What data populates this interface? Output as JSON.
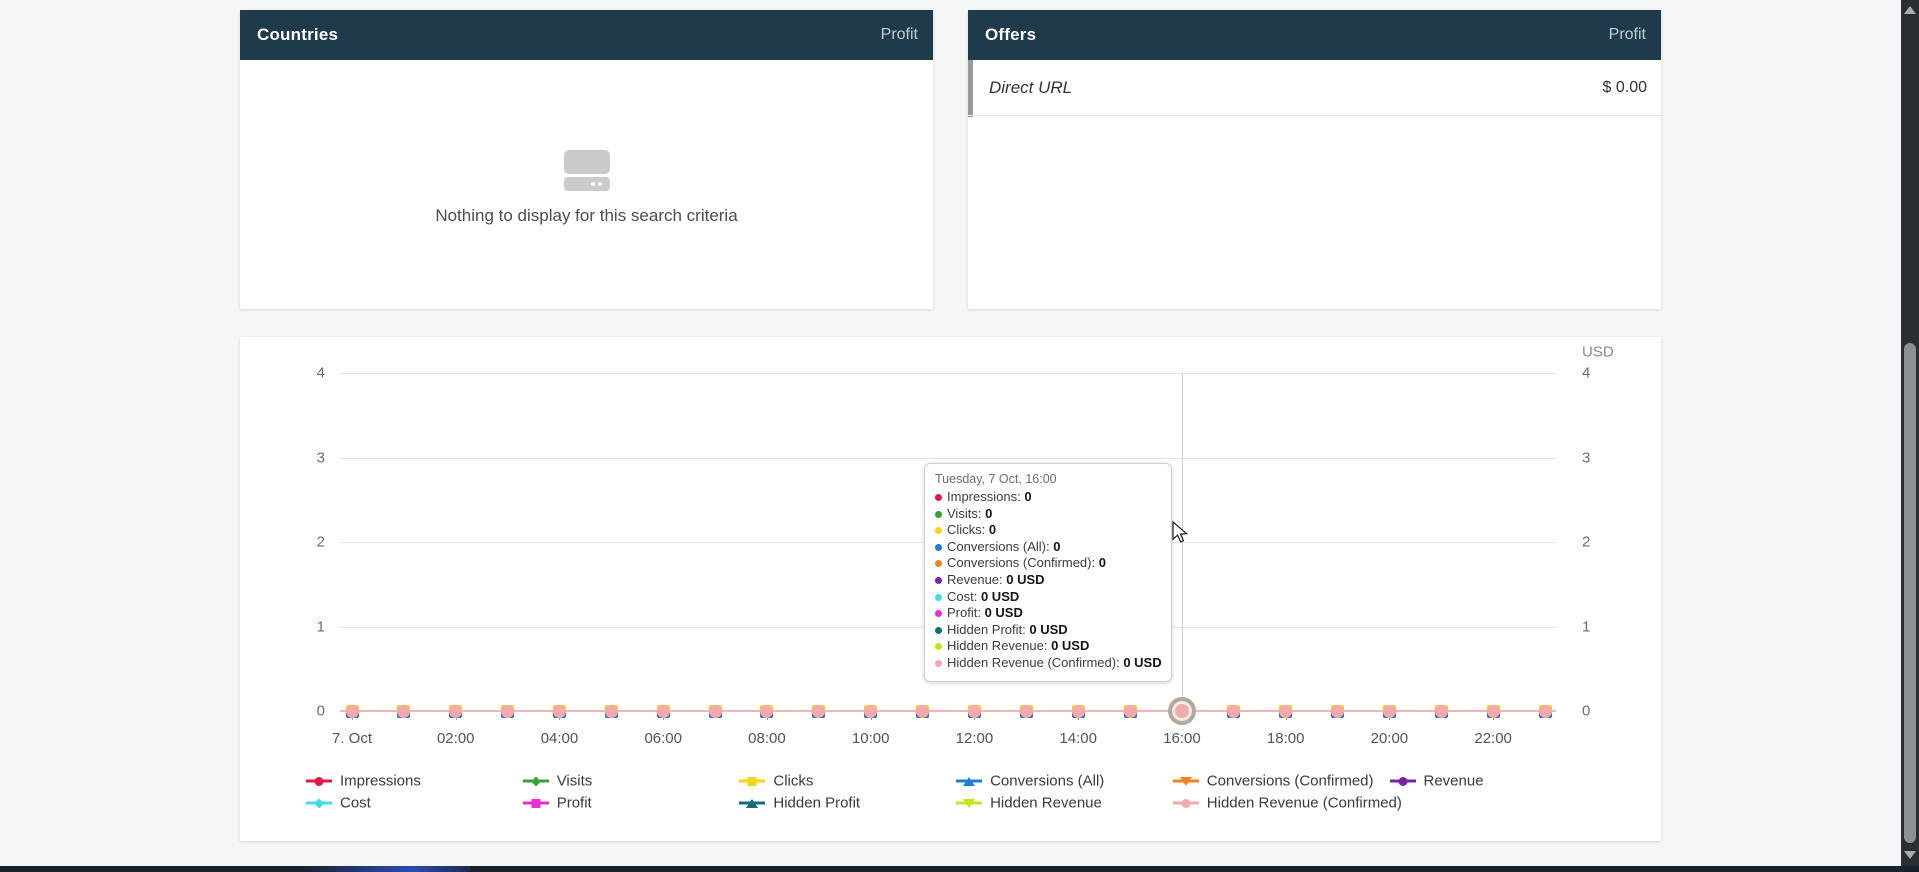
{
  "panels": {
    "countries": {
      "title": "Countries",
      "metric_label": "Profit",
      "empty_text": "Nothing to display for this search criteria"
    },
    "offers": {
      "title": "Offers",
      "metric_label": "Profit",
      "rows": [
        {
          "name": "Direct URL",
          "value": "$ 0.00"
        }
      ]
    }
  },
  "chart": {
    "unit_label": "USD",
    "y_ticks": [
      "4",
      "3",
      "2",
      "1",
      "0"
    ],
    "x_ticks": [
      "7. Oct",
      "02:00",
      "04:00",
      "06:00",
      "08:00",
      "10:00",
      "12:00",
      "14:00",
      "16:00",
      "18:00",
      "20:00",
      "22:00"
    ],
    "hover": {
      "index": 16,
      "tooltip_title": "Tuesday, 7 Oct, 16:00",
      "items": [
        {
          "label": "Impressions",
          "value": "0",
          "color": "#e0194b"
        },
        {
          "label": "Visits",
          "value": "0",
          "color": "#35a532"
        },
        {
          "label": "Clicks",
          "value": "0",
          "color": "#f6d41c"
        },
        {
          "label": "Conversions (All)",
          "value": "0",
          "color": "#1e7fd0"
        },
        {
          "label": "Conversions (Confirmed)",
          "value": "0",
          "color": "#f5821f"
        },
        {
          "label": "Revenue",
          "value": "0 USD",
          "color": "#7c21a8"
        },
        {
          "label": "Cost",
          "value": "0 USD",
          "color": "#41dde4"
        },
        {
          "label": "Profit",
          "value": "0 USD",
          "color": "#ee2bd8"
        },
        {
          "label": "Hidden Profit",
          "value": "0 USD",
          "color": "#136f77"
        },
        {
          "label": "Hidden Revenue",
          "value": "0 USD",
          "color": "#c3e51e"
        },
        {
          "label": "Hidden Revenue (Confirmed)",
          "value": "0 USD",
          "color": "#f3a9ad"
        }
      ]
    },
    "legend_rows": [
      [
        {
          "label": "Impressions",
          "color": "#e0194b",
          "shape": "circle"
        },
        {
          "label": "Visits",
          "color": "#35a532",
          "shape": "diamond"
        },
        {
          "label": "Clicks",
          "color": "#f6d41c",
          "shape": "square"
        },
        {
          "label": "Conversions (All)",
          "color": "#1e7fd0",
          "shape": "triangle-up"
        },
        {
          "label": "Conversions (Confirmed)",
          "color": "#f5821f",
          "shape": "triangle-down"
        },
        {
          "label": "Revenue",
          "color": "#7c21a8",
          "shape": "circle"
        }
      ],
      [
        {
          "label": "Cost",
          "color": "#41dde4",
          "shape": "diamond"
        },
        {
          "label": "Profit",
          "color": "#ee2bd8",
          "shape": "square"
        },
        {
          "label": "Hidden Profit",
          "color": "#136f77",
          "shape": "triangle-up"
        },
        {
          "label": "Hidden Revenue",
          "color": "#c3e51e",
          "shape": "triangle-down"
        },
        {
          "label": "Hidden Revenue (Confirmed)",
          "color": "#f3a9ad",
          "shape": "circle"
        }
      ]
    ]
  },
  "chart_data": {
    "type": "line",
    "title": "",
    "xlabel": "",
    "ylabel": "USD",
    "ylim": [
      0,
      4
    ],
    "grid": true,
    "legend_position": "bottom",
    "x": [
      "00:00",
      "01:00",
      "02:00",
      "03:00",
      "04:00",
      "05:00",
      "06:00",
      "07:00",
      "08:00",
      "09:00",
      "10:00",
      "11:00",
      "12:00",
      "13:00",
      "14:00",
      "15:00",
      "16:00",
      "17:00",
      "18:00",
      "19:00",
      "20:00",
      "21:00",
      "22:00",
      "23:00"
    ],
    "series": [
      {
        "name": "Impressions",
        "color": "#e0194b",
        "values": [
          0,
          0,
          0,
          0,
          0,
          0,
          0,
          0,
          0,
          0,
          0,
          0,
          0,
          0,
          0,
          0,
          0,
          0,
          0,
          0,
          0,
          0,
          0,
          0
        ]
      },
      {
        "name": "Visits",
        "color": "#35a532",
        "values": [
          0,
          0,
          0,
          0,
          0,
          0,
          0,
          0,
          0,
          0,
          0,
          0,
          0,
          0,
          0,
          0,
          0,
          0,
          0,
          0,
          0,
          0,
          0,
          0
        ]
      },
      {
        "name": "Clicks",
        "color": "#f6d41c",
        "values": [
          0,
          0,
          0,
          0,
          0,
          0,
          0,
          0,
          0,
          0,
          0,
          0,
          0,
          0,
          0,
          0,
          0,
          0,
          0,
          0,
          0,
          0,
          0,
          0
        ]
      },
      {
        "name": "Conversions (All)",
        "color": "#1e7fd0",
        "values": [
          0,
          0,
          0,
          0,
          0,
          0,
          0,
          0,
          0,
          0,
          0,
          0,
          0,
          0,
          0,
          0,
          0,
          0,
          0,
          0,
          0,
          0,
          0,
          0
        ]
      },
      {
        "name": "Conversions (Confirmed)",
        "color": "#f5821f",
        "values": [
          0,
          0,
          0,
          0,
          0,
          0,
          0,
          0,
          0,
          0,
          0,
          0,
          0,
          0,
          0,
          0,
          0,
          0,
          0,
          0,
          0,
          0,
          0,
          0
        ]
      },
      {
        "name": "Revenue",
        "color": "#7c21a8",
        "values": [
          0,
          0,
          0,
          0,
          0,
          0,
          0,
          0,
          0,
          0,
          0,
          0,
          0,
          0,
          0,
          0,
          0,
          0,
          0,
          0,
          0,
          0,
          0,
          0
        ]
      },
      {
        "name": "Cost",
        "color": "#41dde4",
        "values": [
          0,
          0,
          0,
          0,
          0,
          0,
          0,
          0,
          0,
          0,
          0,
          0,
          0,
          0,
          0,
          0,
          0,
          0,
          0,
          0,
          0,
          0,
          0,
          0
        ]
      },
      {
        "name": "Profit",
        "color": "#ee2bd8",
        "values": [
          0,
          0,
          0,
          0,
          0,
          0,
          0,
          0,
          0,
          0,
          0,
          0,
          0,
          0,
          0,
          0,
          0,
          0,
          0,
          0,
          0,
          0,
          0,
          0
        ]
      },
      {
        "name": "Hidden Profit",
        "color": "#136f77",
        "values": [
          0,
          0,
          0,
          0,
          0,
          0,
          0,
          0,
          0,
          0,
          0,
          0,
          0,
          0,
          0,
          0,
          0,
          0,
          0,
          0,
          0,
          0,
          0,
          0
        ]
      },
      {
        "name": "Hidden Revenue",
        "color": "#c3e51e",
        "values": [
          0,
          0,
          0,
          0,
          0,
          0,
          0,
          0,
          0,
          0,
          0,
          0,
          0,
          0,
          0,
          0,
          0,
          0,
          0,
          0,
          0,
          0,
          0,
          0
        ]
      },
      {
        "name": "Hidden Revenue (Confirmed)",
        "color": "#f3a9ad",
        "values": [
          0,
          0,
          0,
          0,
          0,
          0,
          0,
          0,
          0,
          0,
          0,
          0,
          0,
          0,
          0,
          0,
          0,
          0,
          0,
          0,
          0,
          0,
          0,
          0
        ]
      }
    ]
  },
  "colors": {
    "panel_header_bg": "#1f3a4a",
    "page_bg": "#f5f6f6",
    "zero_line": "#f1b5b7",
    "gridline": "#e6e6e6",
    "scrollbar_track": "#2a2d31",
    "scrollbar_thumb": "#8d9095",
    "bottom_bar": "#1a202c"
  }
}
